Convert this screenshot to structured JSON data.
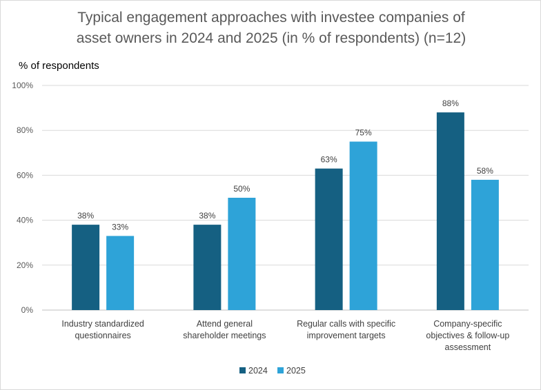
{
  "chart_data": {
    "type": "bar",
    "title_lines": [
      "Typical engagement approaches with investee companies of",
      "asset owners in 2024 and 2025 (in % of respondents) (n=12)"
    ],
    "ylabel": "% of respondents",
    "xlabel": "",
    "ylim": [
      0,
      100
    ],
    "yticks": [
      "0%",
      "20%",
      "40%",
      "60%",
      "80%",
      "100%"
    ],
    "ytick_values": [
      0,
      20,
      40,
      60,
      80,
      100
    ],
    "grid": true,
    "legend_position": "bottom",
    "categories": [
      [
        "Industry standardized",
        "questionnaires"
      ],
      [
        "Attend general",
        "shareholder meetings"
      ],
      [
        "Regular calls with specific",
        "improvement targets"
      ],
      [
        "Company-specific",
        "objectives & follow-up",
        "assessment"
      ]
    ],
    "series": [
      {
        "name": "2024",
        "color": "#156082",
        "values": [
          38,
          38,
          63,
          88
        ],
        "labels": [
          "38%",
          "38%",
          "63%",
          "88%"
        ]
      },
      {
        "name": "2025",
        "color": "#2ea3d8",
        "values": [
          33,
          50,
          75,
          58
        ],
        "labels": [
          "33%",
          "50%",
          "75%",
          "58%"
        ]
      }
    ]
  }
}
